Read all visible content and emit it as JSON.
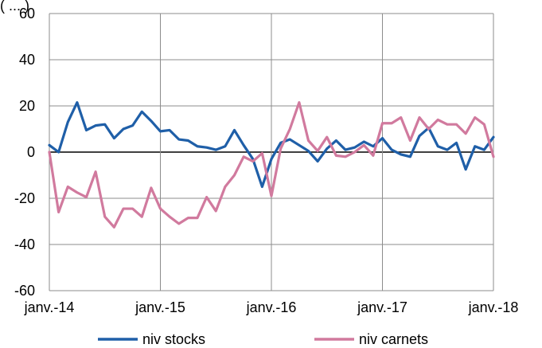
{
  "chart_data": {
    "type": "line",
    "partial_title": "(        ...           )",
    "ylim": [
      -60,
      60
    ],
    "y_ticks": [
      "60",
      "40",
      "20",
      "0",
      "-20",
      "-40",
      "-60"
    ],
    "y_tick_values": [
      60,
      40,
      20,
      0,
      -20,
      -40,
      -60
    ],
    "x_tick_labels": [
      "janv.-14",
      "janv.-15",
      "janv.-16",
      "janv.-17",
      "janv.-18"
    ],
    "x_tick_index": [
      0,
      12,
      24,
      36,
      48
    ],
    "grid": "major gridlines on both axes",
    "legend_position": "bottom",
    "series": [
      {
        "name": "niv stocks",
        "color": "#1f5fa8",
        "values": [
          3,
          0,
          13,
          21.5,
          9.5,
          11.5,
          12,
          6,
          10,
          11.5,
          17.5,
          13.5,
          9,
          9.5,
          5.5,
          5,
          2.5,
          2,
          1,
          2.5,
          9.5,
          3,
          -3,
          -15,
          -3,
          4,
          5.5,
          3,
          0.5,
          -4,
          1.5,
          5,
          1,
          2,
          4.5,
          2.5,
          6,
          1,
          -1,
          -2,
          7,
          10.5,
          2.5,
          1,
          4,
          -7.5,
          2.5,
          1,
          6.5
        ]
      },
      {
        "name": "niv carnets",
        "color": "#d17a9e",
        "values": [
          0,
          -26,
          -15,
          -17.5,
          -19.5,
          -8.5,
          -28,
          -32.5,
          -24.5,
          -24.5,
          -28,
          -15.5,
          -24.5,
          -28,
          -31,
          -28.5,
          -28.5,
          -19.5,
          -25.5,
          -15,
          -10,
          -2,
          -4,
          -0.5,
          -19,
          1.5,
          10,
          21.5,
          5,
          0.5,
          6.5,
          -1.5,
          -2,
          0,
          3,
          -1.5,
          12.5,
          12.5,
          15,
          5,
          15,
          10,
          14,
          12,
          12,
          8,
          15,
          12,
          -2
        ]
      }
    ]
  }
}
